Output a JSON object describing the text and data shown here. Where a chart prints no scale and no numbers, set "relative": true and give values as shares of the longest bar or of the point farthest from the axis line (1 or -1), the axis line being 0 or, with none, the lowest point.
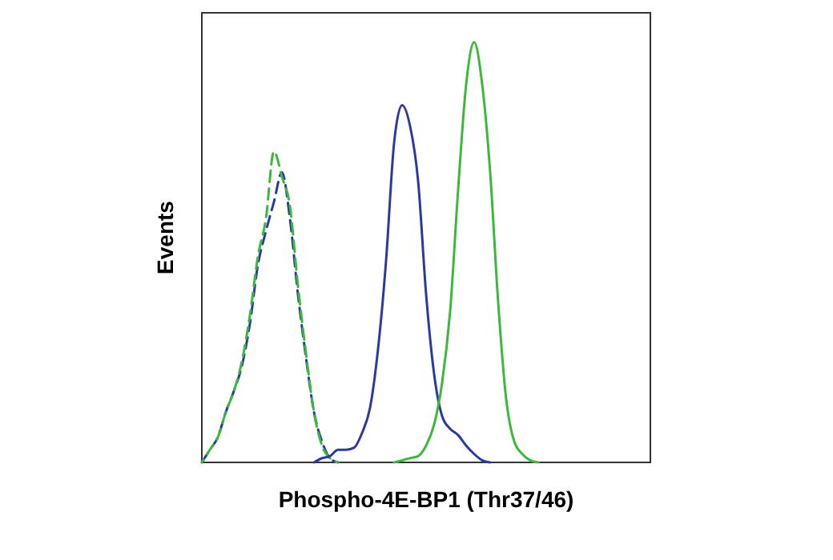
{
  "chart_data": {
    "type": "line",
    "relative": true,
    "xlabel": "Phospho-4E-BP1 (Thr37/46)",
    "ylabel": "Events",
    "marker": "none",
    "categories": [
      null,
      null,
      null,
      null,
      null,
      null,
      null,
      null,
      null,
      null,
      null,
      null,
      null,
      null,
      null,
      null,
      null,
      null,
      null,
      null,
      null,
      null,
      null,
      null,
      null,
      null,
      null,
      null,
      null,
      null,
      null,
      null,
      null,
      null,
      null,
      null,
      null,
      null,
      null,
      null,
      null,
      null,
      null,
      null,
      null,
      null,
      null,
      null,
      null,
      null,
      null,
      null,
      null,
      null,
      null,
      null,
      null
    ],
    "series": [
      {
        "color": "#2b3a9e",
        "line_style": "dashed",
        "values": [
          0,
          0.03,
          0.06,
          0.12,
          0.17,
          0.23,
          0.33,
          0.47,
          0.55,
          0.62,
          0.69,
          0.58,
          0.4,
          0.25,
          0.12,
          0.05,
          0.01,
          0,
          null,
          null,
          null,
          null,
          null,
          null,
          null,
          null,
          null,
          null,
          null,
          null,
          null,
          null,
          null,
          null,
          null,
          null,
          null,
          null,
          null,
          null,
          null,
          null,
          null,
          null,
          null,
          null,
          null,
          null,
          null,
          null,
          null,
          null,
          null,
          null,
          null,
          null,
          null
        ]
      },
      {
        "color": "#3cb83c",
        "line_style": "dashed",
        "values": [
          0,
          0.03,
          0.06,
          0.12,
          0.17,
          0.24,
          0.35,
          0.49,
          0.58,
          0.74,
          0.68,
          0.61,
          0.42,
          0.26,
          0.12,
          0.04,
          0.01,
          0,
          null,
          null,
          null,
          null,
          null,
          null,
          null,
          null,
          null,
          null,
          null,
          null,
          null,
          null,
          null,
          null,
          null,
          null,
          null,
          null,
          null,
          null,
          null,
          null,
          null,
          null,
          null,
          null,
          null,
          null,
          null,
          null,
          null,
          null,
          null,
          null,
          null,
          null,
          null
        ]
      },
      {
        "color": "#2b3a9e",
        "line_style": "solid",
        "values": [
          null,
          null,
          null,
          null,
          null,
          null,
          null,
          null,
          null,
          null,
          null,
          null,
          null,
          null,
          0,
          0.01,
          0.015,
          0.03,
          0.03,
          0.035,
          0.07,
          0.13,
          0.27,
          0.48,
          0.76,
          0.85,
          0.8,
          0.67,
          0.4,
          0.21,
          0.11,
          0.08,
          0.065,
          0.04,
          0.02,
          0.005,
          0,
          null,
          null,
          null,
          null,
          null,
          null,
          null,
          null,
          null,
          null,
          null,
          null,
          null,
          null,
          null,
          null,
          null,
          null,
          null,
          null
        ]
      },
      {
        "color": "#3cb83c",
        "line_style": "solid",
        "values": [
          null,
          null,
          null,
          null,
          null,
          null,
          null,
          null,
          null,
          null,
          null,
          null,
          null,
          null,
          null,
          null,
          null,
          null,
          null,
          null,
          null,
          null,
          null,
          null,
          0,
          0.005,
          0.01,
          0.015,
          0.04,
          0.09,
          0.19,
          0.36,
          0.65,
          0.9,
          1,
          0.9,
          0.69,
          0.38,
          0.15,
          0.05,
          0.02,
          0.005,
          0,
          null,
          null,
          null,
          null,
          null,
          null,
          null,
          null,
          null,
          null,
          null,
          null,
          null,
          null
        ]
      }
    ]
  }
}
